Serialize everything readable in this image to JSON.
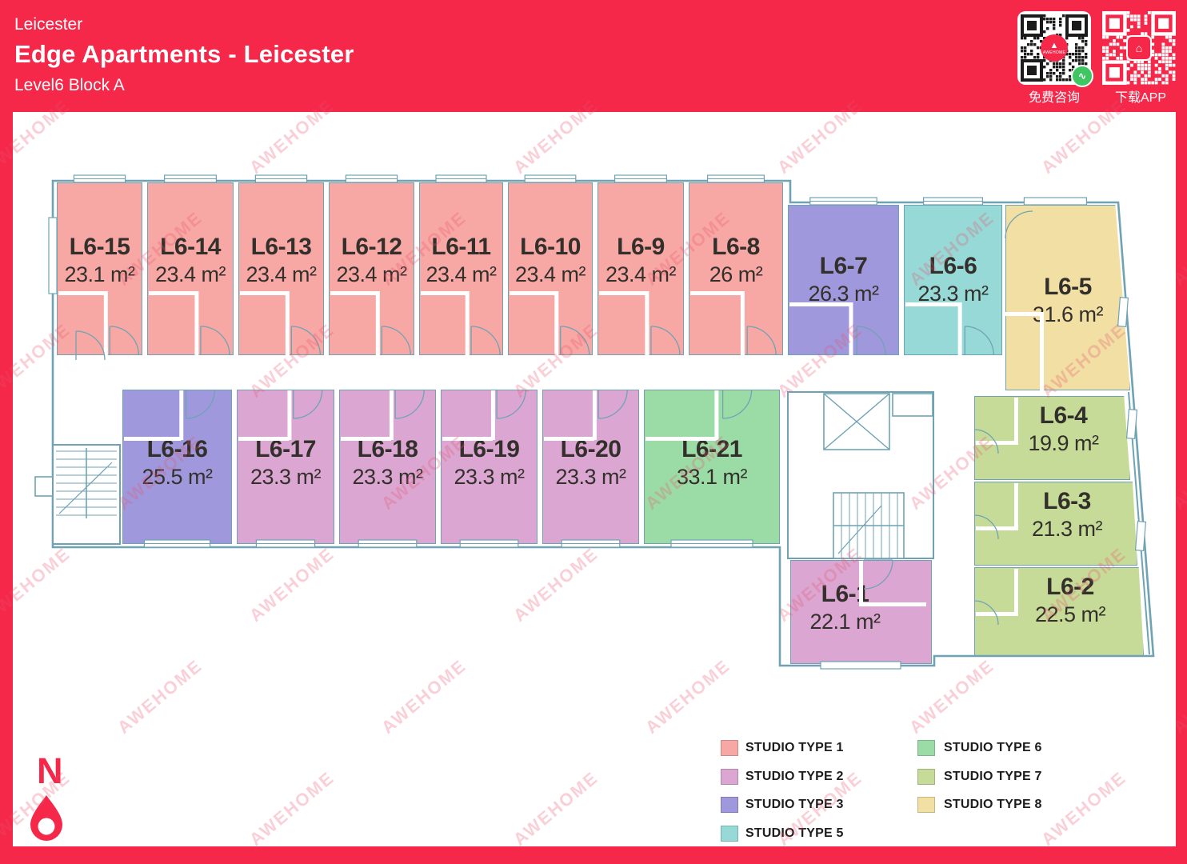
{
  "header": {
    "city": "Leicester",
    "title": "Edge Apartments - Leicester",
    "subtitle": "Level6 Block A"
  },
  "qr": {
    "consult_label": "免费咨询",
    "download_label": "下载APP",
    "brand": "AWEHOME",
    "brand_glyph": "▲",
    "wechat_glyph": "∿",
    "app_glyph": "⌂"
  },
  "compass_label": "N",
  "watermark_text": "AWEHOME",
  "colors": {
    "accent_red": "#F5284A",
    "wall_line": "#6FA3B3",
    "unit_text": "#33302C",
    "qr_dark": "#1b1b1b",
    "wechat_green": "#3FC663"
  },
  "types": {
    "type1": {
      "label": "STUDIO TYPE 1",
      "color": "#F8A8A4"
    },
    "type2": {
      "label": "STUDIO TYPE 2",
      "color": "#DBA6D1"
    },
    "type3": {
      "label": "STUDIO TYPE 3",
      "color": "#A098DC"
    },
    "type5": {
      "label": "STUDIO TYPE 5",
      "color": "#97D9D6"
    },
    "type6": {
      "label": "STUDIO TYPE 6",
      "color": "#9BDCA6"
    },
    "type7": {
      "label": "STUDIO TYPE 7",
      "color": "#C7DB98"
    },
    "type8": {
      "label": "STUDIO TYPE 8",
      "color": "#F1DFA4"
    }
  },
  "legend_columns": [
    [
      "type1",
      "type2",
      "type3",
      "type5"
    ],
    [
      "type6",
      "type7",
      "type8"
    ]
  ],
  "units": [
    {
      "id": "L6-15",
      "area": "23.1 m²",
      "type": "type1"
    },
    {
      "id": "L6-14",
      "area": "23.4 m²",
      "type": "type1"
    },
    {
      "id": "L6-13",
      "area": "23.4 m²",
      "type": "type1"
    },
    {
      "id": "L6-12",
      "area": "23.4 m²",
      "type": "type1"
    },
    {
      "id": "L6-11",
      "area": "23.4 m²",
      "type": "type1"
    },
    {
      "id": "L6-10",
      "area": "23.4 m²",
      "type": "type1"
    },
    {
      "id": "L6-9",
      "area": "23.4 m²",
      "type": "type1"
    },
    {
      "id": "L6-8",
      "area": "26 m²",
      "type": "type1"
    },
    {
      "id": "L6-7",
      "area": "26.3 m²",
      "type": "type3"
    },
    {
      "id": "L6-6",
      "area": "23.3 m²",
      "type": "type5"
    },
    {
      "id": "L6-5",
      "area": "31.6 m²",
      "type": "type8"
    },
    {
      "id": "L6-16",
      "area": "25.5 m²",
      "type": "type3"
    },
    {
      "id": "L6-17",
      "area": "23.3 m²",
      "type": "type2"
    },
    {
      "id": "L6-18",
      "area": "23.3 m²",
      "type": "type2"
    },
    {
      "id": "L6-19",
      "area": "23.3 m²",
      "type": "type2"
    },
    {
      "id": "L6-20",
      "area": "23.3 m²",
      "type": "type2"
    },
    {
      "id": "L6-21",
      "area": "33.1 m²",
      "type": "type6"
    },
    {
      "id": "L6-1",
      "area": "22.1 m²",
      "type": "type2"
    },
    {
      "id": "L6-4",
      "area": "19.9 m²",
      "type": "type7"
    },
    {
      "id": "L6-3",
      "area": "21.3 m²",
      "type": "type7"
    },
    {
      "id": "L6-2",
      "area": "22.5 m²",
      "type": "type7"
    }
  ]
}
